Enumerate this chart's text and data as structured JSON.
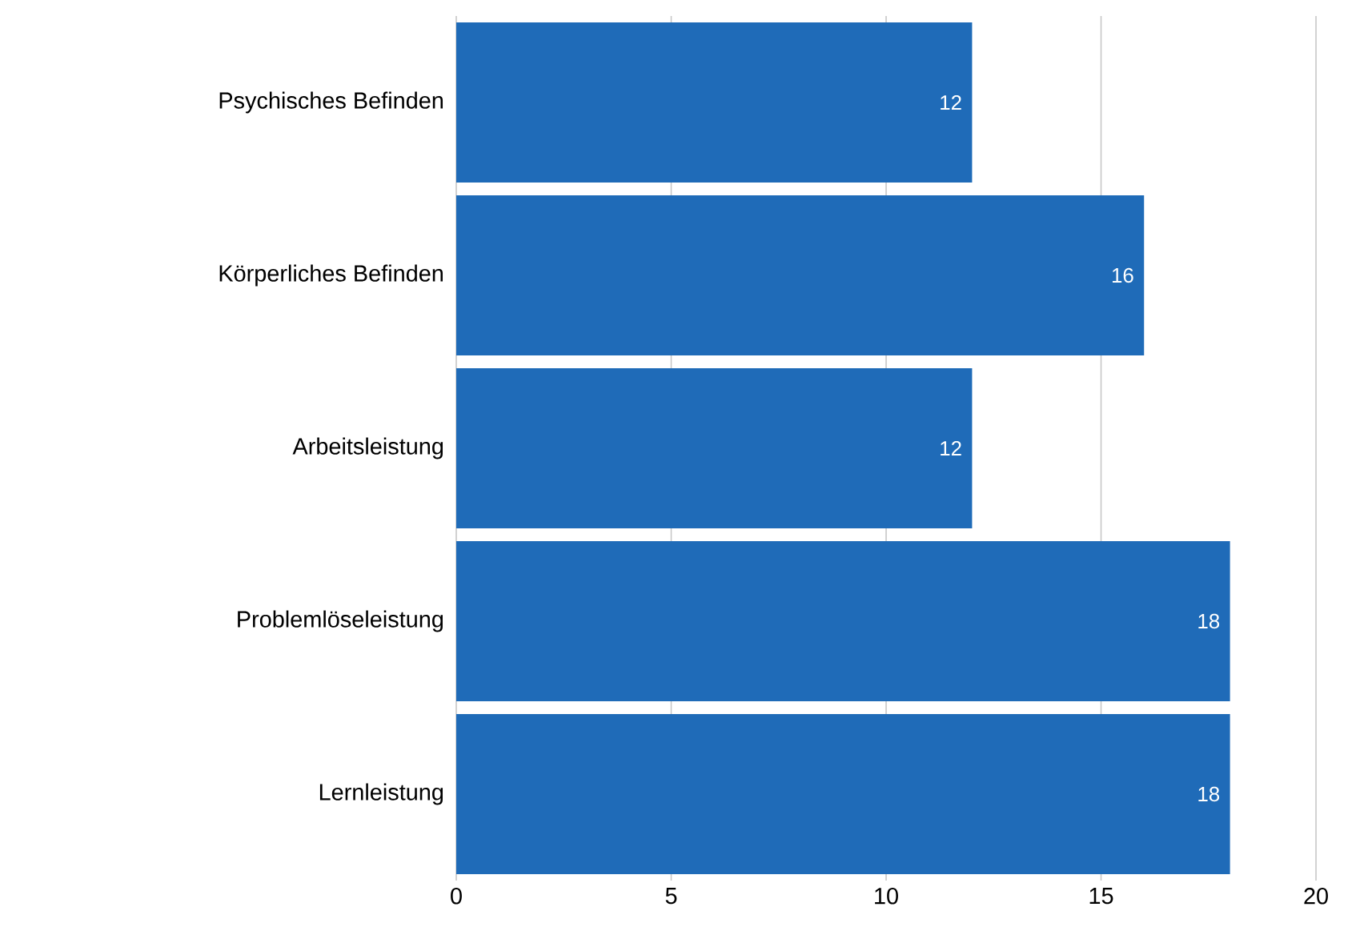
{
  "chart_data": {
    "type": "bar",
    "orientation": "horizontal",
    "categories": [
      "Psychisches Befinden",
      "Körperliches Befinden",
      "Arbeitsleistung",
      "Problemlöseleistung",
      "Lernleistung"
    ],
    "values": [
      12,
      16,
      12,
      18,
      18
    ],
    "color": "#1f6bb8",
    "xlim": [
      0,
      20
    ],
    "xticks": [
      0,
      5,
      10,
      15,
      20
    ],
    "grid": "x",
    "data_labels": true
  }
}
